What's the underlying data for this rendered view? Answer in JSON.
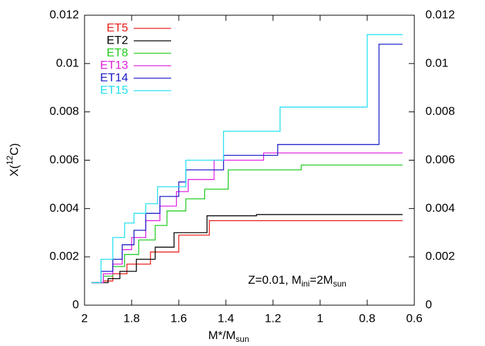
{
  "chart_data": {
    "type": "step",
    "x_label": [
      "M",
      "*",
      "/M",
      "sun"
    ],
    "y_label": [
      "X(",
      "12",
      "C)"
    ],
    "annotation": [
      "Z=0.01, M",
      "ini",
      "=2M",
      "sun"
    ],
    "xlim": [
      2,
      0.6
    ],
    "xticks": [
      2,
      1.8,
      1.6,
      1.4,
      1.2,
      1,
      0.8,
      0.6
    ],
    "ylim": [
      0,
      0.012
    ],
    "yticks": [
      0,
      0.002,
      0.004,
      0.006,
      0.008,
      0.01,
      0.012
    ],
    "y2lim": [
      0,
      0.012
    ],
    "y2ticks": [
      0,
      0.002,
      0.004,
      0.006,
      0.008,
      0.01,
      0.012
    ],
    "legend": "top-left",
    "series": [
      {
        "name": "ET5",
        "color": "#e8201c",
        "x": [
          1.97,
          1.92,
          1.88,
          1.82,
          1.72,
          1.6,
          1.47,
          0.65
        ],
        "values": [
          0.00093,
          0.001,
          0.0013,
          0.0017,
          0.0022,
          0.0029,
          0.0035,
          0.0035
        ]
      },
      {
        "name": "ET2",
        "color": "#000000",
        "x": [
          1.97,
          1.9,
          1.85,
          1.78,
          1.7,
          1.62,
          1.48,
          1.27,
          0.65
        ],
        "values": [
          0.00093,
          0.0011,
          0.0014,
          0.0019,
          0.0024,
          0.003,
          0.0037,
          0.00375,
          0.00375
        ]
      },
      {
        "name": "ET8",
        "color": "#22cc22",
        "x": [
          1.97,
          1.92,
          1.88,
          1.83,
          1.77,
          1.7,
          1.65,
          1.57,
          1.49,
          1.39,
          1.08,
          0.65
        ],
        "values": [
          0.00093,
          0.0012,
          0.0016,
          0.0021,
          0.0027,
          0.0033,
          0.0039,
          0.0044,
          0.0048,
          0.0056,
          0.0058,
          0.0058
        ]
      },
      {
        "name": "ET13",
        "color": "#e020e0",
        "x": [
          1.97,
          1.92,
          1.88,
          1.84,
          1.8,
          1.74,
          1.68,
          1.61,
          1.56,
          1.45,
          1.24,
          0.65
        ],
        "values": [
          0.00093,
          0.0013,
          0.0017,
          0.0023,
          0.0028,
          0.0035,
          0.0041,
          0.0047,
          0.0052,
          0.006,
          0.0063,
          0.0063
        ]
      },
      {
        "name": "ET14",
        "color": "#1c1cc8",
        "x": [
          1.97,
          1.93,
          1.88,
          1.84,
          1.79,
          1.74,
          1.68,
          1.6,
          1.57,
          1.41,
          1.18,
          0.75,
          0.65
        ],
        "values": [
          0.00093,
          0.0014,
          0.0019,
          0.0025,
          0.0031,
          0.0038,
          0.0045,
          0.0051,
          0.0056,
          0.0062,
          0.00665,
          0.0108,
          0.0108
        ]
      },
      {
        "name": "ET15",
        "color": "#22e0f0",
        "x": [
          1.97,
          1.93,
          1.88,
          1.83,
          1.79,
          1.74,
          1.69,
          1.57,
          1.41,
          1.17,
          0.8,
          0.65
        ],
        "values": [
          0.00093,
          0.0019,
          0.0028,
          0.0034,
          0.0038,
          0.0042,
          0.0049,
          0.006,
          0.0072,
          0.0082,
          0.0112,
          0.0112
        ]
      }
    ]
  }
}
